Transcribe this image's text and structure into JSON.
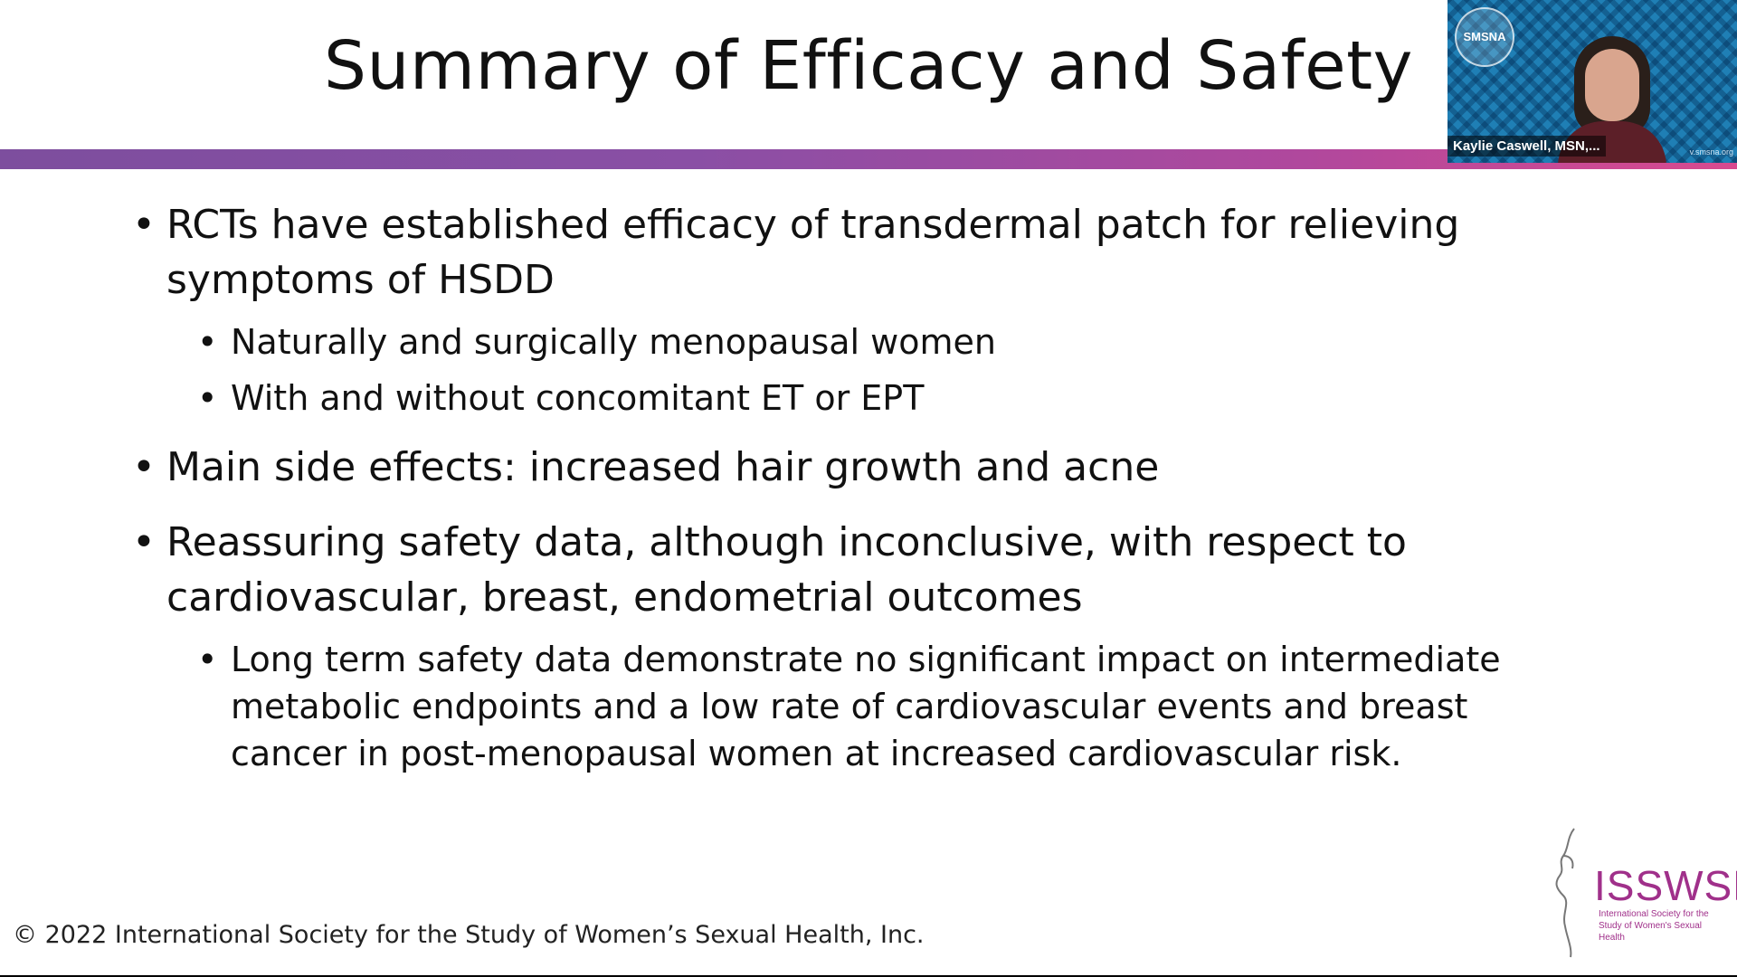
{
  "slide": {
    "title": "Summary of Efficacy and Safety",
    "bullets": [
      {
        "level": 1,
        "text": "RCTs have established efficacy of transdermal patch for relieving symptoms of HSDD"
      },
      {
        "level": 2,
        "text": "Naturally and surgically menopausal women"
      },
      {
        "level": 2,
        "text": "With and without concomitant ET or EPT"
      },
      {
        "level": 1,
        "text": "Main side effects: increased hair growth and acne"
      },
      {
        "level": 1,
        "text": "Reassuring safety data, although inconclusive, with respect to cardiovascular, breast, endometrial outcomes"
      },
      {
        "level": 2,
        "text": "Long term safety data demonstrate no significant impact on intermediate metabolic endpoints and a low rate of cardiovascular events and breast cancer in post-menopausal women at increased cardiovascular risk."
      }
    ],
    "copyright": "© 2022 International Society for the Study of Women’s Sexual Health, Inc.",
    "logo": {
      "text": "ISSWSH",
      "subtitle": "International Society for the Study of Women's Sexual Health"
    },
    "colors": {
      "bar_start": "#7d4e9e",
      "bar_end": "#d84a8f",
      "logo": "#a0308a"
    }
  },
  "video": {
    "badge": "SMSNA",
    "participant_name": "Kaylie Caswell, MSN,...",
    "url_fragment": "v.smsna.org",
    "background_color": "#1f7fb5"
  }
}
